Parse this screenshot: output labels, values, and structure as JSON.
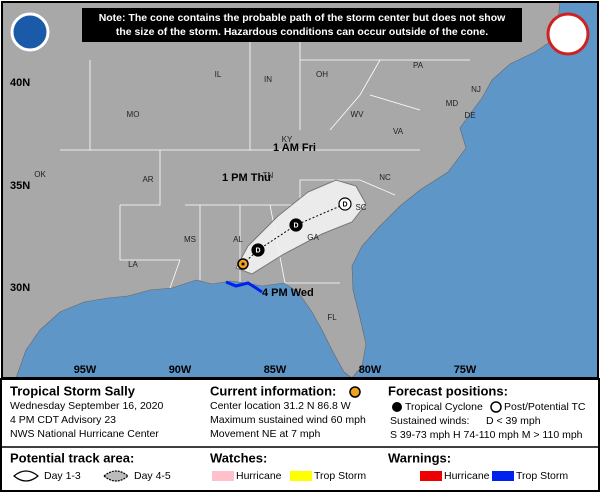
{
  "note": [
    "Note: The cone contains the probable path of the storm center but does not show",
    "the size of the storm. Hazardous conditions can occur outside of the cone."
  ],
  "map": {
    "lat_labels": [
      "40N",
      "35N",
      "30N"
    ],
    "lon_labels": [
      "95W",
      "90W",
      "85W",
      "80W",
      "75W"
    ],
    "state_labels": [
      "PA",
      "NJ",
      "MD",
      "DE",
      "OH",
      "IN",
      "IL",
      "MO",
      "WV",
      "VA",
      "KY",
      "TN",
      "NC",
      "SC",
      "GA",
      "AL",
      "MS",
      "LA",
      "AR",
      "OK",
      "FL"
    ],
    "track_labels": [
      "1 AM Fri",
      "1 PM Thu",
      "4 PM Wed"
    ],
    "forecast_markers": [
      "D",
      "D",
      "D"
    ]
  },
  "legend": {
    "storm": {
      "name": "Tropical Storm Sally",
      "date": "Wednesday September 16, 2020",
      "advisory": "4 PM CDT Advisory 23",
      "office": "NWS National Hurricane Center"
    },
    "current": {
      "title": "Current information:",
      "location": "Center location 31.2 N 86.8 W",
      "wind": "Maximum sustained wind 60 mph",
      "movement": "Movement NE at 7 mph"
    },
    "forecast": {
      "title": "Forecast positions:",
      "tc": "Tropical Cyclone",
      "post": "Post/Potential TC",
      "winds_label": "Sustained winds:",
      "d": "D < 39 mph",
      "scale": "S 39-73 mph  H 74-110 mph  M > 110 mph"
    },
    "track_area": {
      "title": "Potential track area:",
      "day13": "Day 1-3",
      "day45": "Day 4-5"
    },
    "watches": {
      "title": "Watches:",
      "hurricane": "Hurricane",
      "trop_storm": "Trop Storm"
    },
    "warnings": {
      "title": "Warnings:",
      "hurricane": "Hurricane",
      "trop_storm": "Trop Storm"
    }
  }
}
